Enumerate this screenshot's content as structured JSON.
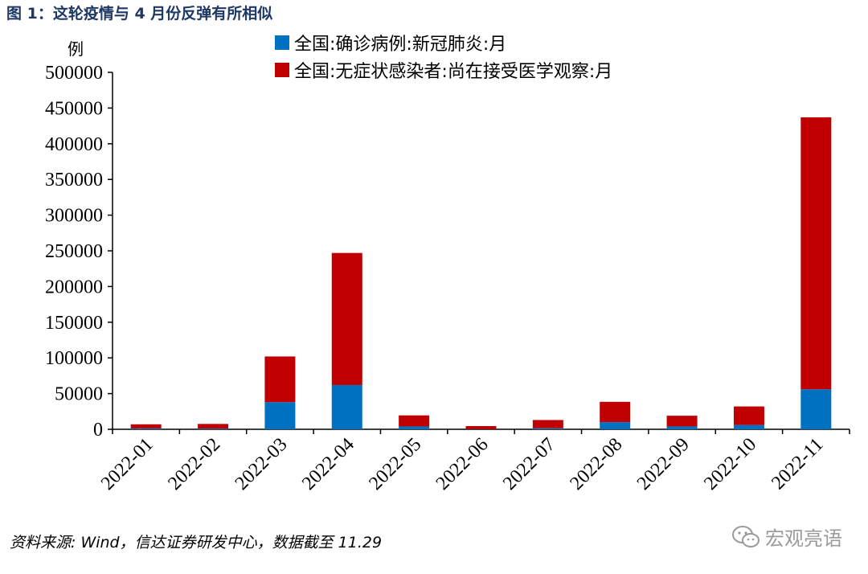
{
  "title": "图 1：这轮疫情与 4 月份反弹有所相似",
  "y_unit": "例",
  "source": "资料来源: Wind，信达证券研发中心，数据截至 11.29",
  "watermark": "宏观亮语",
  "watermark_icon": "wechat-icon",
  "chart_data": {
    "type": "bar",
    "stacked": true,
    "categories": [
      "2022-01",
      "2022-02",
      "2022-03",
      "2022-04",
      "2022-05",
      "2022-06",
      "2022-07",
      "2022-08",
      "2022-09",
      "2022-10",
      "2022-11"
    ],
    "series": [
      {
        "name": "全国:确诊病例:新冠肺炎:月",
        "color": "#0070c0",
        "values": [
          1200,
          1000,
          38000,
          62000,
          4000,
          300,
          1500,
          10000,
          4000,
          6000,
          56000
        ]
      },
      {
        "name": "全国:无症状感染者:尚在接受医学观察:月",
        "color": "#c00000",
        "values": [
          5800,
          6500,
          64000,
          185000,
          15500,
          4200,
          11500,
          28500,
          15000,
          26000,
          381000
        ]
      }
    ],
    "ylim": [
      0,
      500000
    ],
    "yticks": [
      "0",
      "50000",
      "100000",
      "150000",
      "200000",
      "250000",
      "300000",
      "350000",
      "400000",
      "450000",
      "500000"
    ],
    "ytick_values": [
      0,
      50000,
      100000,
      150000,
      200000,
      250000,
      300000,
      350000,
      400000,
      450000,
      500000
    ],
    "grid": false,
    "legend_position": "top"
  }
}
